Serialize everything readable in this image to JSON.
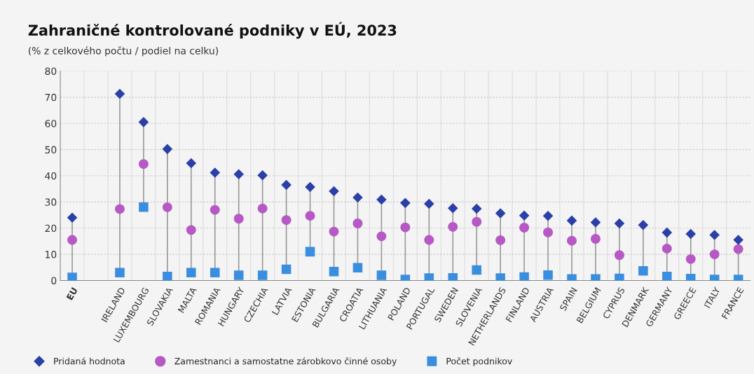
{
  "chart_data": {
    "type": "scatter",
    "title": "Zahraničné kontrolované podniky v EÚ, 2023",
    "subtitle": "(% z celkového počtu / podiel na celku)",
    "categories": [
      "EU",
      null,
      "IRELAND",
      "LUXEMBOURG",
      "SLOVAKIA",
      "MALTA",
      "ROMANIA",
      "HUNGARY",
      "CZECHIA",
      "LATVIA",
      "ESTONIA",
      "BULGARIA",
      "CROATIA",
      "LITHUANIA",
      "POLAND",
      "PORTUGAL",
      "SWEDEN",
      "SLOVENIA",
      "NETHERLANDS",
      "FINLAND",
      "AUSTRIA",
      "SPAIN",
      "BELGIUM",
      "CYPRUS",
      "DENMARK",
      "GERMANY",
      "GREECE",
      "ITALY",
      "FRANCE"
    ],
    "series": [
      {
        "name": "Pridaná hodnota",
        "color": "#2a3fa8",
        "marker": "diamond",
        "values": [
          24,
          null,
          71.3,
          60.5,
          50.2,
          44.8,
          41.2,
          40.6,
          40.2,
          36.5,
          35.7,
          34.1,
          31.7,
          30.9,
          29.6,
          29.3,
          27.6,
          27.4,
          25.7,
          24.8,
          24.7,
          22.9,
          22.2,
          21.8,
          21.2,
          18.3,
          17.8,
          17.4,
          15.5
        ]
      },
      {
        "name": "Zamestnanci a samostatne zárobkovo činné osoby",
        "color": "#b659c4",
        "marker": "circle",
        "values": [
          15.5,
          null,
          27.3,
          44.5,
          28,
          19.3,
          27,
          23.6,
          27.5,
          23.1,
          24.7,
          18.7,
          21.8,
          16.9,
          20.3,
          15.5,
          20.5,
          22.4,
          15.4,
          20.2,
          18.4,
          15.2,
          15.9,
          9.7,
          null,
          12.2,
          8.2,
          10,
          12
        ]
      },
      {
        "name": "Počet podnikov",
        "color": "#3a8ee0",
        "marker": "square",
        "values": [
          1.2,
          null,
          3,
          28,
          1.5,
          3,
          3,
          2,
          2,
          4.3,
          11,
          3.4,
          4.9,
          2,
          0.4,
          0.9,
          1,
          4,
          0.9,
          1.3,
          2.1,
          0.6,
          0.6,
          0.8,
          3.7,
          1.5,
          0.7,
          0.4,
          0.4
        ]
      }
    ],
    "ylim": [
      0,
      80
    ],
    "yticks": [
      0,
      10,
      20,
      30,
      40,
      50,
      60,
      70,
      80
    ],
    "grid": true,
    "legend": "bottom left"
  }
}
